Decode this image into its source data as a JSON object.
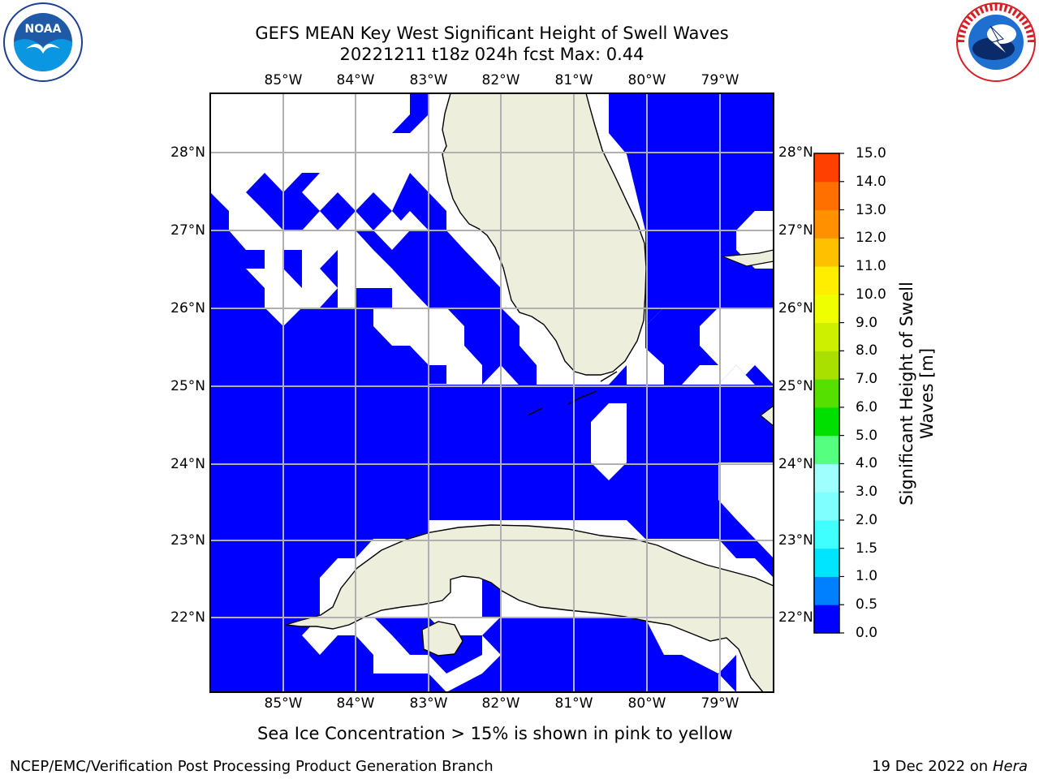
{
  "title_line1": "GEFS MEAN Key West Significant Height of Swell Waves",
  "title_line2": "20221211 t18z 024h fcst   Max: 0.44",
  "caption": "Sea Ice Concentration > 15% is shown in pink to yellow",
  "footer_left": "NCEP/EMC/Verification Post Processing Product Generation Branch",
  "footer_date": "19 Dec 2022 on",
  "footer_host": "Hera",
  "logos": {
    "noaa_text": "NOAA",
    "noaa_ring": "NATIONAL OCEANIC AND ATMOSPHERIC ADMINISTRATION · U.S. DEPARTMENT OF COMMERCE",
    "nws_ring": "NATIONAL WEATHER SERVICE"
  },
  "map": {
    "lon_ticks": [
      "85°W",
      "84°W",
      "83°W",
      "82°W",
      "81°W",
      "80°W",
      "79°W"
    ],
    "lat_ticks": [
      "28°N",
      "27°N",
      "26°N",
      "25°N",
      "24°N",
      "23°N",
      "22°N"
    ],
    "ocean_color": "#0000ff",
    "land_color": "#eeeedd",
    "grid_color": "#b0b0b0"
  },
  "colorbar": {
    "label": "Significant Height of Swell Waves [m]",
    "ticks": [
      "0.0",
      "0.5",
      "1.0",
      "1.5",
      "2.0",
      "3.0",
      "4.0",
      "5.0",
      "6.0",
      "7.0",
      "8.0",
      "9.0",
      "10.0",
      "11.0",
      "12.0",
      "13.0",
      "14.0",
      "15.0"
    ],
    "colors": [
      "#0000ff",
      "#0080ff",
      "#00e5ff",
      "#40ffff",
      "#7fffff",
      "#9fffff",
      "#55ff7f",
      "#00e000",
      "#55e000",
      "#aae000",
      "#ccf000",
      "#f0ff00",
      "#ffee00",
      "#ffc000",
      "#ff9000",
      "#ff7000",
      "#ff4000",
      "#ff0000"
    ]
  }
}
